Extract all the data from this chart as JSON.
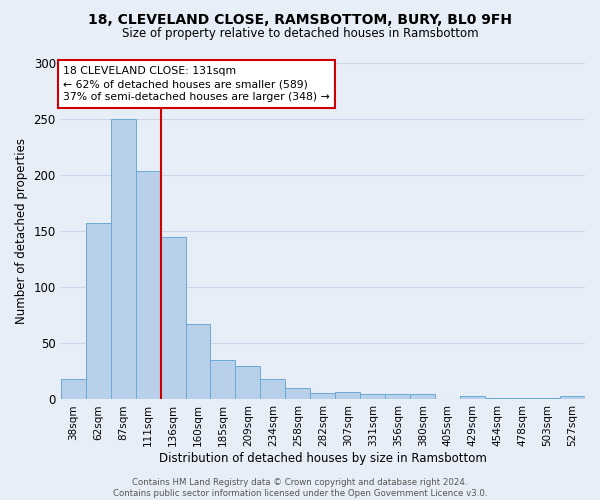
{
  "title1": "18, CLEVELAND CLOSE, RAMSBOTTOM, BURY, BL0 9FH",
  "title2": "Size of property relative to detached houses in Ramsbottom",
  "xlabel": "Distribution of detached houses by size in Ramsbottom",
  "ylabel": "Number of detached properties",
  "categories": [
    "38sqm",
    "62sqm",
    "87sqm",
    "111sqm",
    "136sqm",
    "160sqm",
    "185sqm",
    "209sqm",
    "234sqm",
    "258sqm",
    "282sqm",
    "307sqm",
    "331sqm",
    "356sqm",
    "380sqm",
    "405sqm",
    "429sqm",
    "454sqm",
    "478sqm",
    "503sqm",
    "527sqm"
  ],
  "values": [
    18,
    157,
    250,
    203,
    145,
    67,
    35,
    30,
    18,
    10,
    6,
    7,
    5,
    5,
    5,
    0,
    3,
    1,
    1,
    1,
    3
  ],
  "bar_color": "#b8d0ea",
  "bar_edge_color": "#6aaad4",
  "bar_edge_width": 0.7,
  "vline_color": "#cc0000",
  "annotation_line1": "18 CLEVELAND CLOSE: 131sqm",
  "annotation_line2": "← 62% of detached houses are smaller (589)",
  "annotation_line3": "37% of semi-detached houses are larger (348) →",
  "annotation_box_color": "#ffffff",
  "annotation_box_edge": "#cc0000",
  "footer": "Contains HM Land Registry data © Crown copyright and database right 2024.\nContains public sector information licensed under the Open Government Licence v3.0.",
  "ylim": [
    0,
    300
  ],
  "yticks": [
    0,
    50,
    100,
    150,
    200,
    250,
    300
  ],
  "grid_color": "#ccd6e8",
  "bg_color": "#e8eef8"
}
